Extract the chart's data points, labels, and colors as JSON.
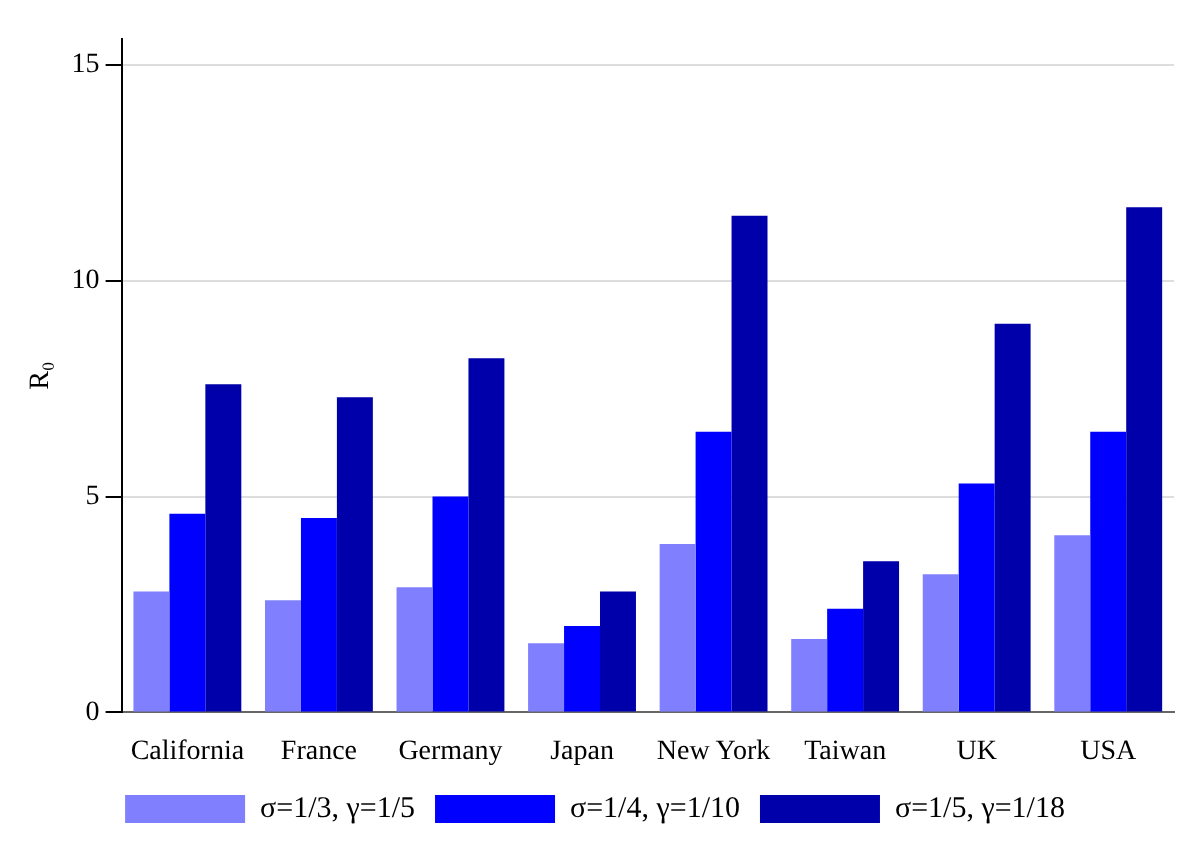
{
  "chart_data": {
    "type": "bar",
    "ylabel": "R₀",
    "categories": [
      "California",
      "France",
      "Germany",
      "Japan",
      "New York",
      "Taiwan",
      "UK",
      "USA"
    ],
    "series": [
      {
        "name": "σ=1/3, γ=1/5",
        "color": "#8080ff",
        "values": [
          2.8,
          2.6,
          2.9,
          1.6,
          3.9,
          1.7,
          3.2,
          4.1
        ]
      },
      {
        "name": "σ=1/4, γ=1/10",
        "color": "#0000ff",
        "values": [
          4.6,
          4.5,
          5.0,
          2.0,
          6.5,
          2.4,
          5.3,
          6.5
        ]
      },
      {
        "name": "σ=1/5, γ=1/18",
        "color": "#0000aa",
        "values": [
          7.6,
          7.3,
          8.2,
          2.8,
          11.5,
          3.5,
          9.0,
          11.7
        ]
      }
    ],
    "ylim": [
      0,
      15.6
    ],
    "yticks": [
      0,
      5,
      10,
      15
    ],
    "grid": "y",
    "legend": "bottom"
  }
}
